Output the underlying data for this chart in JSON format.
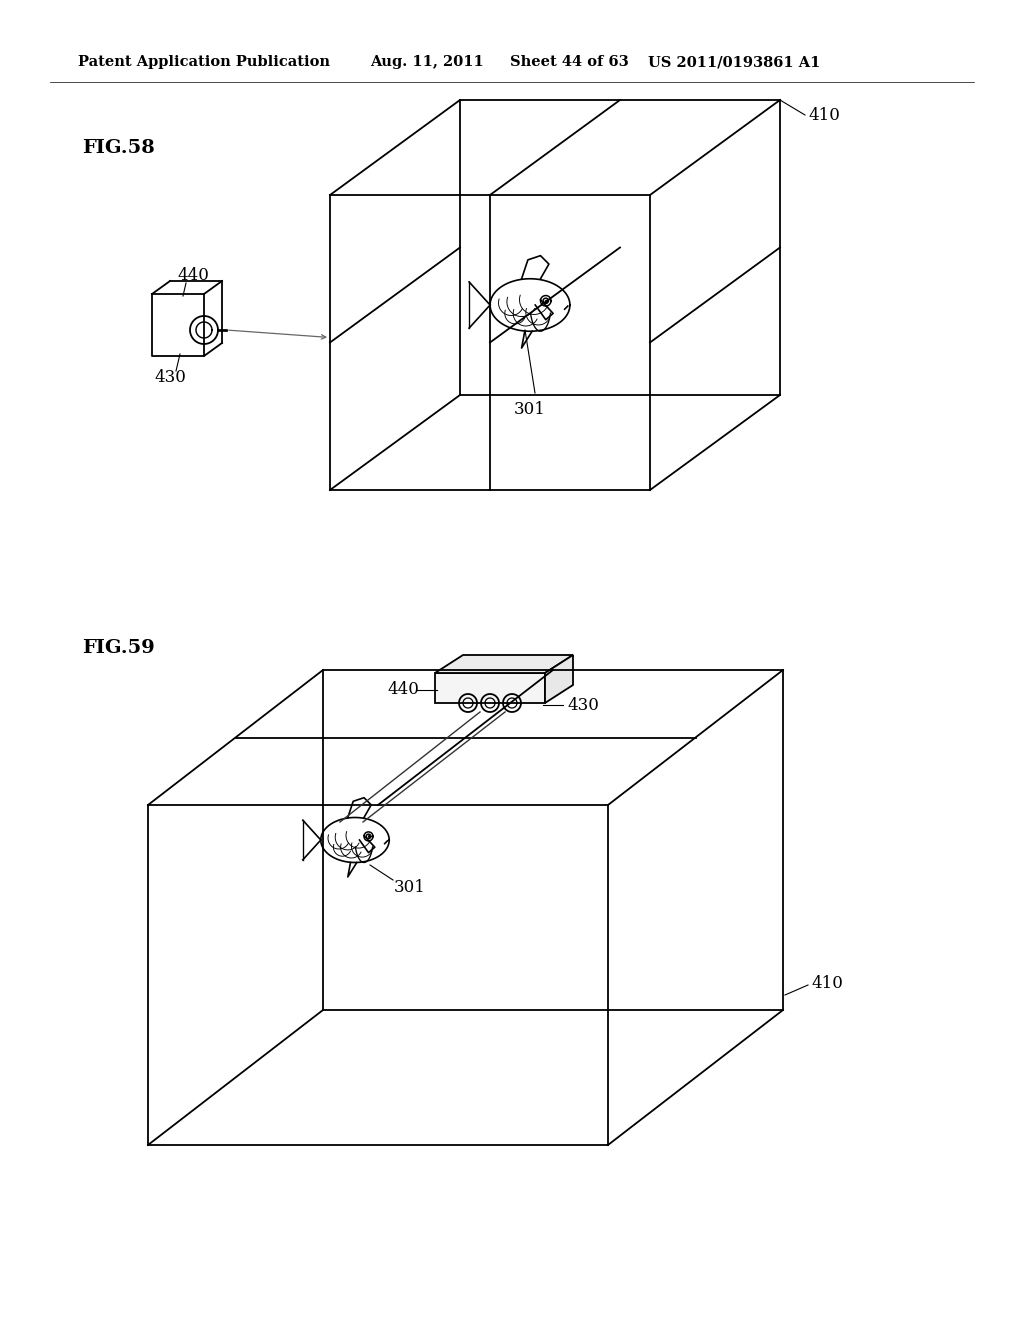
{
  "bg_color": "#ffffff",
  "fig_width": 10.24,
  "fig_height": 13.2,
  "header_text": "Patent Application Publication",
  "header_date": "Aug. 11, 2011",
  "header_sheet": "Sheet 44 of 63",
  "header_patent": "US 2011/0193861 A1",
  "fig58_label": "FIG.58",
  "fig59_label": "FIG.59",
  "label_410_1": "410",
  "label_430_1": "430",
  "label_440_1": "440",
  "label_301_1": "301",
  "label_410_2": "410",
  "label_430_2": "430",
  "label_440_2": "440",
  "label_301_2": "301"
}
